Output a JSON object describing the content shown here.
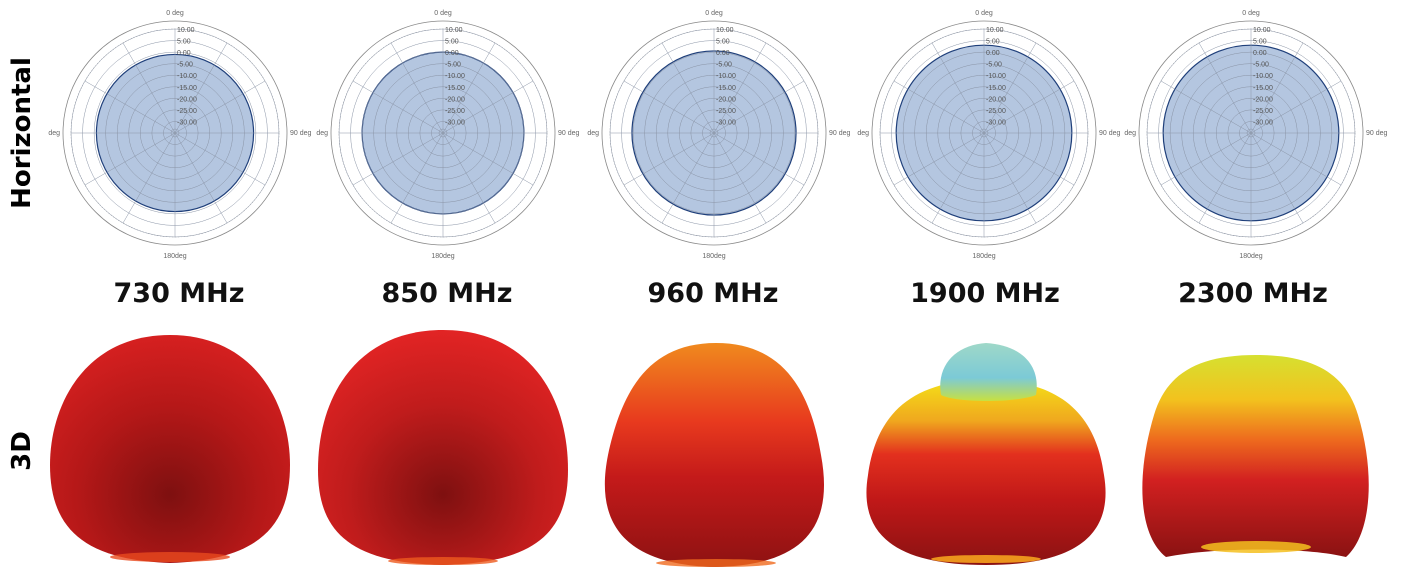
{
  "row_labels": {
    "horizontal": "Horizontal",
    "three_d": "3D"
  },
  "frequencies": [
    "730 MHz",
    "850 MHz",
    "960 MHz",
    "1900 MHz",
    "2300 MHz"
  ],
  "chart_data": [
    {
      "type": "polar-area",
      "frequency": "730 MHz",
      "angle_labels": [
        "0 deg",
        "90 deg",
        "180deg",
        "deg"
      ],
      "radial_ticks": [
        "10.00",
        "5.00",
        "0.00",
        "-5.00",
        "-10.00",
        "-15.00",
        "-20.00",
        "-25.00",
        "-30.00"
      ],
      "rlim": [
        -35,
        10
      ],
      "gain_db": -1.0,
      "colors": {
        "fill": "#b4c6e0",
        "stroke": "#1f3f7a"
      }
    },
    {
      "type": "polar-area",
      "frequency": "850 MHz",
      "angle_labels": [
        "0 deg",
        "90 deg",
        "180deg",
        "deg"
      ],
      "radial_ticks": [
        "10.00",
        "5.00",
        "0.00",
        "-5.00",
        "-10.00",
        "-15.00",
        "-20.00",
        "-25.00",
        "-30.00"
      ],
      "rlim": [
        -35,
        10
      ],
      "gain_db": 0.0,
      "colors": {
        "fill": "#b4c6e0",
        "stroke": "#1f3f7a"
      }
    },
    {
      "type": "polar-area",
      "frequency": "960 MHz",
      "angle_labels": [
        "0 deg",
        "90 deg",
        "180deg",
        "deg"
      ],
      "radial_ticks": [
        "10.00",
        "5.00",
        "0.00",
        "-5.00",
        "-10.00",
        "-15.00",
        "-20.00",
        "-25.00",
        "-30.00"
      ],
      "rlim": [
        -35,
        10
      ],
      "gain_db": 0.5,
      "colors": {
        "fill": "#b4c6e0",
        "stroke": "#1f3f7a"
      }
    },
    {
      "type": "polar-area",
      "frequency": "1900 MHz",
      "angle_labels": [
        "0 deg",
        "90 deg",
        "180deg",
        "deg"
      ],
      "radial_ticks": [
        "10.00",
        "5.00",
        "0.00",
        "-5.00",
        "-10.00",
        "-15.00",
        "-20.00",
        "-25.00",
        "-30.00"
      ],
      "rlim": [
        -35,
        10
      ],
      "gain_db": 3.0,
      "colors": {
        "fill": "#b4c6e0",
        "stroke": "#1f3f7a"
      }
    },
    {
      "type": "polar-area",
      "frequency": "2300 MHz",
      "angle_labels": [
        "0 deg",
        "90 deg",
        "180deg",
        "deg"
      ],
      "radial_ticks": [
        "10.00",
        "5.00",
        "0.00",
        "-5.00",
        "-10.00",
        "-15.00",
        "-20.00",
        "-25.00",
        "-30.00"
      ],
      "rlim": [
        -35,
        10
      ],
      "gain_db": 3.0,
      "colors": {
        "fill": "#b4c6e0",
        "stroke": "#1f3f7a"
      }
    }
  ],
  "three_d_colors": {
    "dark_red": "#8a1414",
    "red": "#e32222",
    "orange": "#f07a1e",
    "yellow": "#f4e018",
    "green": "#b8e040",
    "cyan": "#8ad6d6"
  }
}
